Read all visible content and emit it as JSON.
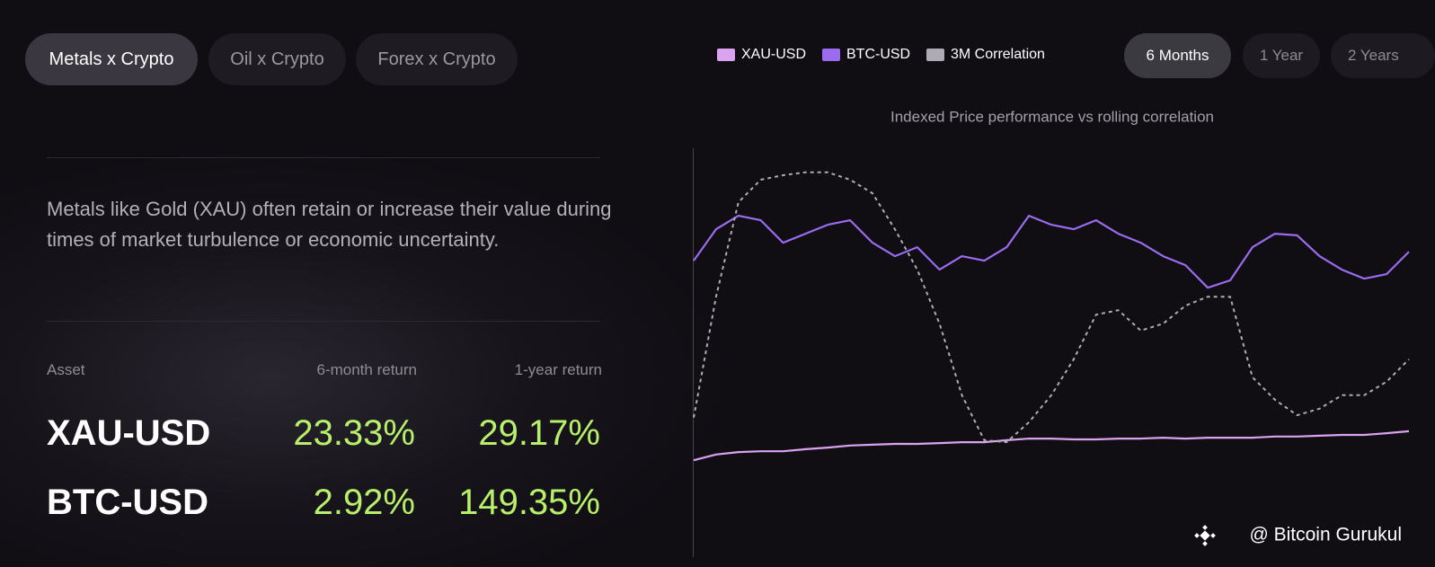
{
  "tabs": [
    "Metals x Crypto",
    "Oil x Crypto",
    "Forex x Crypto"
  ],
  "description": "Metals like Gold (XAU) often retain or increase their value during times of market turbulence or economic uncertainty.",
  "table": {
    "headers": [
      "Asset",
      "6-month return",
      "1-year return"
    ],
    "rows": [
      [
        "XAU-USD",
        "23.33%",
        "29.17%"
      ],
      [
        "BTC-USD",
        "2.92%",
        "149.35%"
      ]
    ]
  },
  "range_buttons": [
    "6 Months",
    "1 Year",
    "2 Years"
  ],
  "watermark": "@ Bitcoin Gurukul",
  "chart_data": {
    "type": "line",
    "title": "Indexed Price performance vs rolling correlation",
    "ylim": [
      0,
      100
    ],
    "series": [
      {
        "name": "XAU-USD",
        "color": "#d9a3ef",
        "line_style": "solid",
        "values": [
          23.7,
          25.1,
          25.7,
          25.9,
          25.9,
          26.4,
          26.8,
          27.3,
          27.5,
          27.7,
          27.7,
          27.9,
          28.1,
          28.1,
          28.6,
          29.0,
          29.0,
          28.8,
          28.8,
          29.0,
          29.0,
          29.2,
          29.0,
          29.2,
          29.2,
          29.2,
          29.5,
          29.5,
          29.7,
          29.9,
          29.9,
          30.3,
          30.8
        ]
      },
      {
        "name": "BTC-USD",
        "color": "#9b6cf0",
        "line_style": "solid",
        "values": [
          72.5,
          80.2,
          83.5,
          82.4,
          76.9,
          79.1,
          81.3,
          82.4,
          76.9,
          73.6,
          75.8,
          70.3,
          73.6,
          72.5,
          75.8,
          83.5,
          81.3,
          80.2,
          82.4,
          79.1,
          76.9,
          73.6,
          71.4,
          65.9,
          67.7,
          75.8,
          79.1,
          78.7,
          73.6,
          70.3,
          68.1,
          69.2,
          74.7
        ]
      },
      {
        "name": "3M Correlation",
        "color": "#aeabb4",
        "line_style": "dashed",
        "values": [
          34.1,
          63.7,
          86.8,
          92.3,
          93.4,
          94.1,
          94.1,
          92.3,
          89.0,
          80.2,
          70.3,
          57.1,
          39.6,
          28.6,
          28.1,
          33.0,
          39.6,
          48.4,
          59.3,
          60.4,
          55.4,
          57.1,
          61.5,
          63.7,
          63.7,
          44.0,
          38.5,
          34.7,
          36.3,
          39.6,
          39.6,
          42.9,
          48.4
        ]
      }
    ]
  }
}
